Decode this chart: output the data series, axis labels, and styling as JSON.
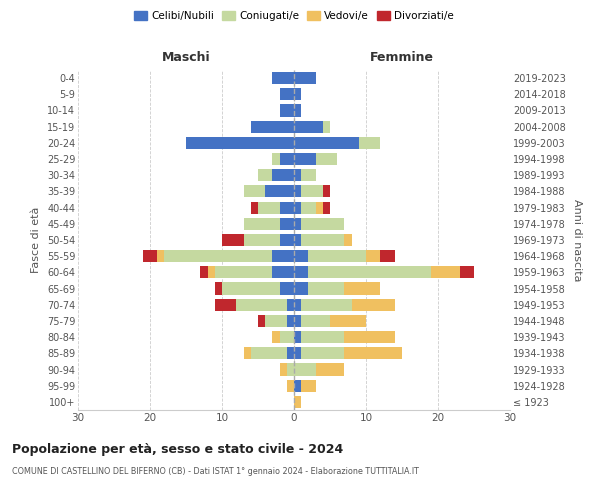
{
  "age_groups": [
    "100+",
    "95-99",
    "90-94",
    "85-89",
    "80-84",
    "75-79",
    "70-74",
    "65-69",
    "60-64",
    "55-59",
    "50-54",
    "45-49",
    "40-44",
    "35-39",
    "30-34",
    "25-29",
    "20-24",
    "15-19",
    "10-14",
    "5-9",
    "0-4"
  ],
  "birth_years": [
    "≤ 1923",
    "1924-1928",
    "1929-1933",
    "1934-1938",
    "1939-1943",
    "1944-1948",
    "1949-1953",
    "1954-1958",
    "1959-1963",
    "1964-1968",
    "1969-1973",
    "1974-1978",
    "1979-1983",
    "1984-1988",
    "1989-1993",
    "1994-1998",
    "1999-2003",
    "2004-2008",
    "2009-2013",
    "2014-2018",
    "2019-2023"
  ],
  "male": {
    "celibe": [
      0,
      0,
      0,
      1,
      0,
      1,
      1,
      2,
      3,
      3,
      2,
      2,
      2,
      4,
      3,
      2,
      15,
      6,
      2,
      2,
      3
    ],
    "coniugato": [
      0,
      0,
      1,
      5,
      2,
      3,
      7,
      8,
      8,
      15,
      5,
      5,
      3,
      3,
      2,
      1,
      0,
      0,
      0,
      0,
      0
    ],
    "vedovo": [
      0,
      1,
      1,
      1,
      1,
      0,
      0,
      0,
      1,
      1,
      0,
      0,
      0,
      0,
      0,
      0,
      0,
      0,
      0,
      0,
      0
    ],
    "divorziato": [
      0,
      0,
      0,
      0,
      0,
      1,
      3,
      1,
      1,
      2,
      3,
      0,
      1,
      0,
      0,
      0,
      0,
      0,
      0,
      0,
      0
    ]
  },
  "female": {
    "nubile": [
      0,
      1,
      0,
      1,
      1,
      1,
      1,
      2,
      2,
      2,
      1,
      1,
      1,
      1,
      1,
      3,
      9,
      4,
      1,
      1,
      3
    ],
    "coniugata": [
      0,
      0,
      3,
      6,
      6,
      4,
      7,
      5,
      17,
      8,
      6,
      6,
      2,
      3,
      2,
      3,
      3,
      1,
      0,
      0,
      0
    ],
    "vedova": [
      1,
      2,
      4,
      8,
      7,
      5,
      6,
      5,
      4,
      2,
      1,
      0,
      1,
      0,
      0,
      0,
      0,
      0,
      0,
      0,
      0
    ],
    "divorziata": [
      0,
      0,
      0,
      0,
      0,
      0,
      0,
      0,
      2,
      2,
      0,
      0,
      1,
      1,
      0,
      0,
      0,
      0,
      0,
      0,
      0
    ]
  },
  "colors": {
    "celibe": "#4472c4",
    "coniugato": "#c5d9a0",
    "vedovo": "#f0c060",
    "divorziato": "#c0272d"
  },
  "xlim": 30,
  "title": "Popolazione per età, sesso e stato civile - 2024",
  "subtitle": "COMUNE DI CASTELLINO DEL BIFERNO (CB) - Dati ISTAT 1° gennaio 2024 - Elaborazione TUTTITALIA.IT",
  "ylabel_left": "Fasce di età",
  "ylabel_right": "Anni di nascita",
  "xlabel_maschi": "Maschi",
  "xlabel_femmine": "Femmine",
  "legend_labels": [
    "Celibi/Nubili",
    "Coniugati/e",
    "Vedovi/e",
    "Divorziati/e"
  ],
  "bg_color": "#ffffff",
  "grid_color": "#cccccc"
}
